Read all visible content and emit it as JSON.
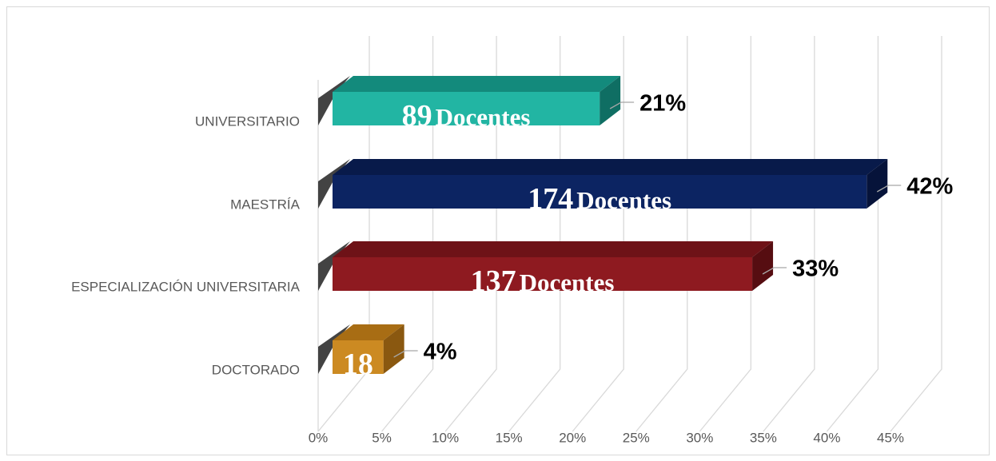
{
  "chart_data": {
    "type": "bar3d",
    "orientation": "horizontal",
    "categories": [
      "UNIVERSITARIO",
      "MAESTRÍA",
      "ESPECIALIZACIÓN UNIVERSITARIA",
      "DOCTORADO"
    ],
    "values": [
      21,
      42,
      33,
      4
    ],
    "value_labels": [
      "21%",
      "42%",
      "33%",
      "4%"
    ],
    "inner_labels": [
      {
        "count": 89,
        "unit": "Docentes"
      },
      {
        "count": 174,
        "unit": "Docentes"
      },
      {
        "count": 137,
        "unit": "Docentes"
      },
      {
        "count": 18
      }
    ],
    "colors": [
      {
        "front": "#22b5a3",
        "top": "#138a7c",
        "side": "#0f6e63"
      },
      {
        "front": "#0c2462",
        "top": "#081a4a",
        "side": "#06133a"
      },
      {
        "front": "#8e1a20",
        "top": "#6e1217",
        "side": "#560d11"
      },
      {
        "front": "#cc8a22",
        "top": "#a86d14",
        "side": "#8a5810"
      }
    ],
    "xlim": [
      0,
      45
    ],
    "xticks": [
      {
        "value": 0,
        "label": "0%"
      },
      {
        "value": 5,
        "label": "5%"
      },
      {
        "value": 10,
        "label": "10%"
      },
      {
        "value": 15,
        "label": "15%"
      },
      {
        "value": 20,
        "label": "20%"
      },
      {
        "value": 25,
        "label": "25%"
      },
      {
        "value": 30,
        "label": "30%"
      },
      {
        "value": 35,
        "label": "35%"
      },
      {
        "value": 40,
        "label": "40%"
      },
      {
        "value": 45,
        "label": "45%"
      }
    ],
    "grid": true
  }
}
